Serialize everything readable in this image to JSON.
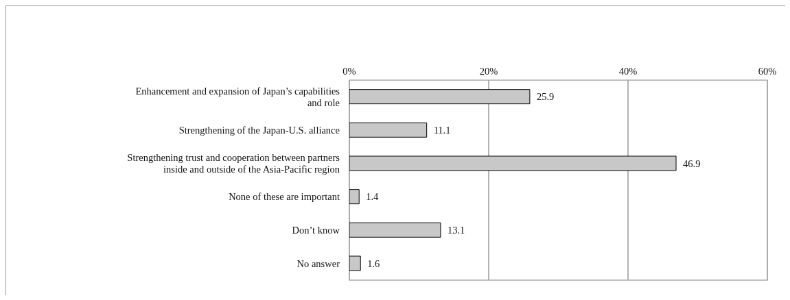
{
  "chart_data": {
    "type": "bar",
    "orientation": "horizontal",
    "categories": [
      "Enhancement and expansion of Japan’s capabilities and role",
      "Strengthening of the Japan-U.S. alliance",
      "Strengthening trust and cooperation between partners inside and outside of the Asia-Pacific region",
      "None of these are important",
      "Don’t know",
      "No answer"
    ],
    "values": [
      25.9,
      11.1,
      46.9,
      1.4,
      13.1,
      1.6
    ],
    "color": "#c8c8c8",
    "xlim": [
      0,
      60
    ],
    "xticks": [
      {
        "value": 0,
        "label": "0%"
      },
      {
        "value": 20,
        "label": "20%"
      },
      {
        "value": 40,
        "label": "40%"
      },
      {
        "value": 60,
        "label": "60%"
      }
    ],
    "grid": "x",
    "data_labels": true
  }
}
